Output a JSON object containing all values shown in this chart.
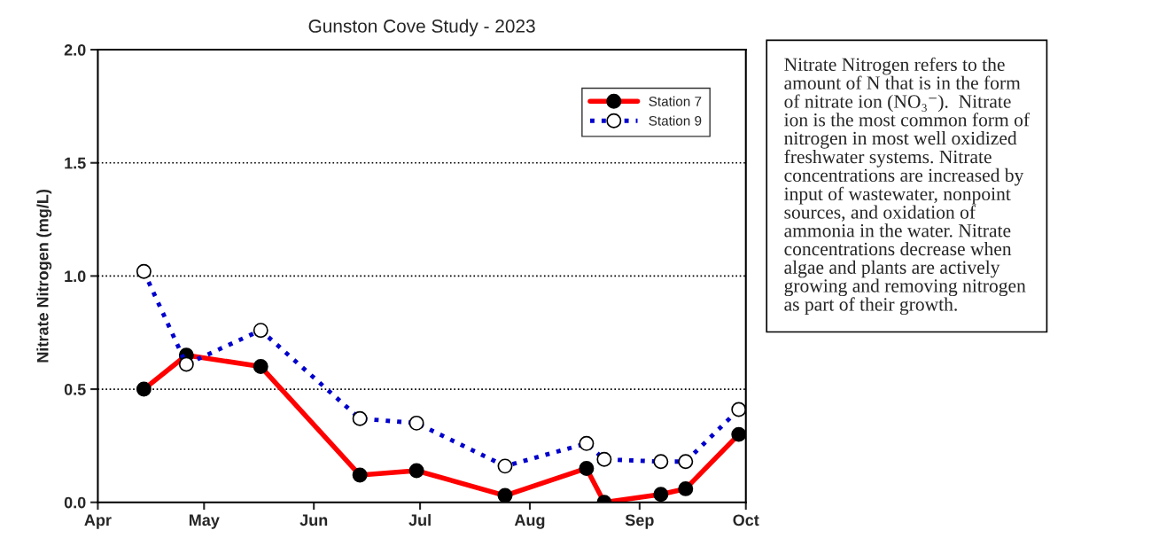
{
  "chart_data": {
    "type": "line",
    "title": "Gunston Cove Study - 2023",
    "ylabel": "Nitrate Nitrogen (mg/L)",
    "x": [
      "2023-04-14",
      "2023-04-26",
      "2023-05-17",
      "2023-06-14",
      "2023-06-30",
      "2023-07-25",
      "2023-08-17",
      "2023-08-22",
      "2023-09-07",
      "2023-09-14",
      "2023-09-29"
    ],
    "series": [
      {
        "name": "Station 7",
        "color": "#ff0000",
        "line_style": "solid",
        "marker": "circle",
        "values": [
          0.5,
          0.65,
          0.6,
          0.12,
          0.14,
          0.03,
          0.15,
          0.0,
          0.035,
          0.06,
          0.3
        ]
      },
      {
        "name": "Station 9",
        "color": "#0000cc",
        "line_style": "dotted",
        "marker": "circle",
        "values": [
          1.02,
          0.61,
          0.76,
          0.37,
          0.35,
          0.16,
          0.26,
          0.19,
          0.18,
          0.18,
          0.41
        ]
      }
    ],
    "xlim": [
      "2023-04-01",
      "2023-10-01"
    ],
    "xticks": [
      {
        "value": "2023-04-01",
        "label": "Apr"
      },
      {
        "value": "2023-05-01",
        "label": "May"
      },
      {
        "value": "2023-06-01",
        "label": "Jun"
      },
      {
        "value": "2023-07-01",
        "label": "Jul"
      },
      {
        "value": "2023-08-01",
        "label": "Aug"
      },
      {
        "value": "2023-09-01",
        "label": "Sep"
      },
      {
        "value": "2023-10-01",
        "label": "Oct"
      }
    ],
    "ylim": [
      0,
      2.0
    ],
    "yticks": [
      {
        "value": 0,
        "label": "0.0"
      },
      {
        "value": 0.5,
        "label": "0.5"
      },
      {
        "value": 1.0,
        "label": "1.0"
      },
      {
        "value": 1.5,
        "label": "1.5"
      },
      {
        "value": 2.0,
        "label": "2.0"
      }
    ],
    "grid": "y",
    "legend": "top right",
    "annotations": [
      "Nitrate Nitrogen refers to the\namount of N that is in the form\nof nitrate ion (NO₃⁻).  Nitrate\nion is the most common form of\nnitrogen in most well oxidized\nfreshwater systems. Nitrate\nconcentrations are increased by\ninput of wastewater, nonpoint\nsources, and oxidation of\nammonia in the water. Nitrate\nconcentrations decrease when\nalgae and plants are actively\ngrowing and removing nitrogen\nas part of their growth."
    ]
  }
}
